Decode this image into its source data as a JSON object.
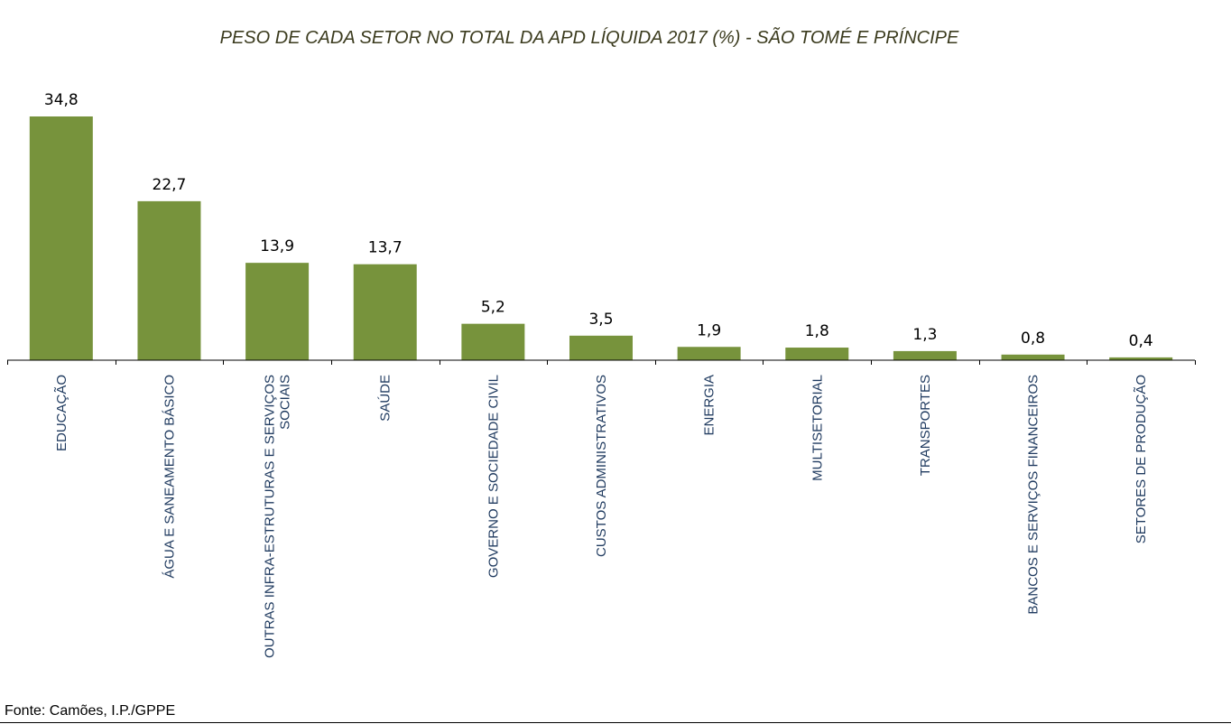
{
  "source": "Fonte: Camões, I.P./GPPE",
  "colors": {
    "bar": "#77933c",
    "axis": "#000000",
    "category_text": "#1f3a5f"
  },
  "chart_data": {
    "type": "bar",
    "title": "PESO DE CADA SETOR NO TOTAL DA APD LÍQUIDA 2017 (%) - SÃO TOMÉ E PRÍNCIPE",
    "xlabel": "",
    "ylabel": "",
    "grid": false,
    "legend": "none",
    "ylim": [
      0,
      35
    ],
    "categories": [
      [
        "EDUCAÇÃO"
      ],
      [
        "ÁGUA E SANEAMENTO BÁSICO"
      ],
      [
        "OUTRAS INFRA-ESTRUTURAS E SERVIÇOS",
        "SOCIAIS"
      ],
      [
        "SAÚDE"
      ],
      [
        "GOVERNO E SOCIEDADE CIVIL"
      ],
      [
        "CUSTOS ADMINISTRATIVOS"
      ],
      [
        "ENERGIA"
      ],
      [
        "MULTISETORIAL"
      ],
      [
        "TRANSPORTES"
      ],
      [
        "BANCOS E SERVIÇOS FINANCEIROS"
      ],
      [
        "SETORES DE PRODUÇÃO"
      ]
    ],
    "values": [
      34.8,
      22.7,
      13.9,
      13.7,
      5.2,
      3.5,
      1.9,
      1.8,
      1.3,
      0.8,
      0.4
    ],
    "value_labels": [
      "34,8",
      "22,7",
      "13,9",
      "13,7",
      "5,2",
      "3,5",
      "1,9",
      "1,8",
      "1,3",
      "0,8",
      "0,4"
    ]
  }
}
